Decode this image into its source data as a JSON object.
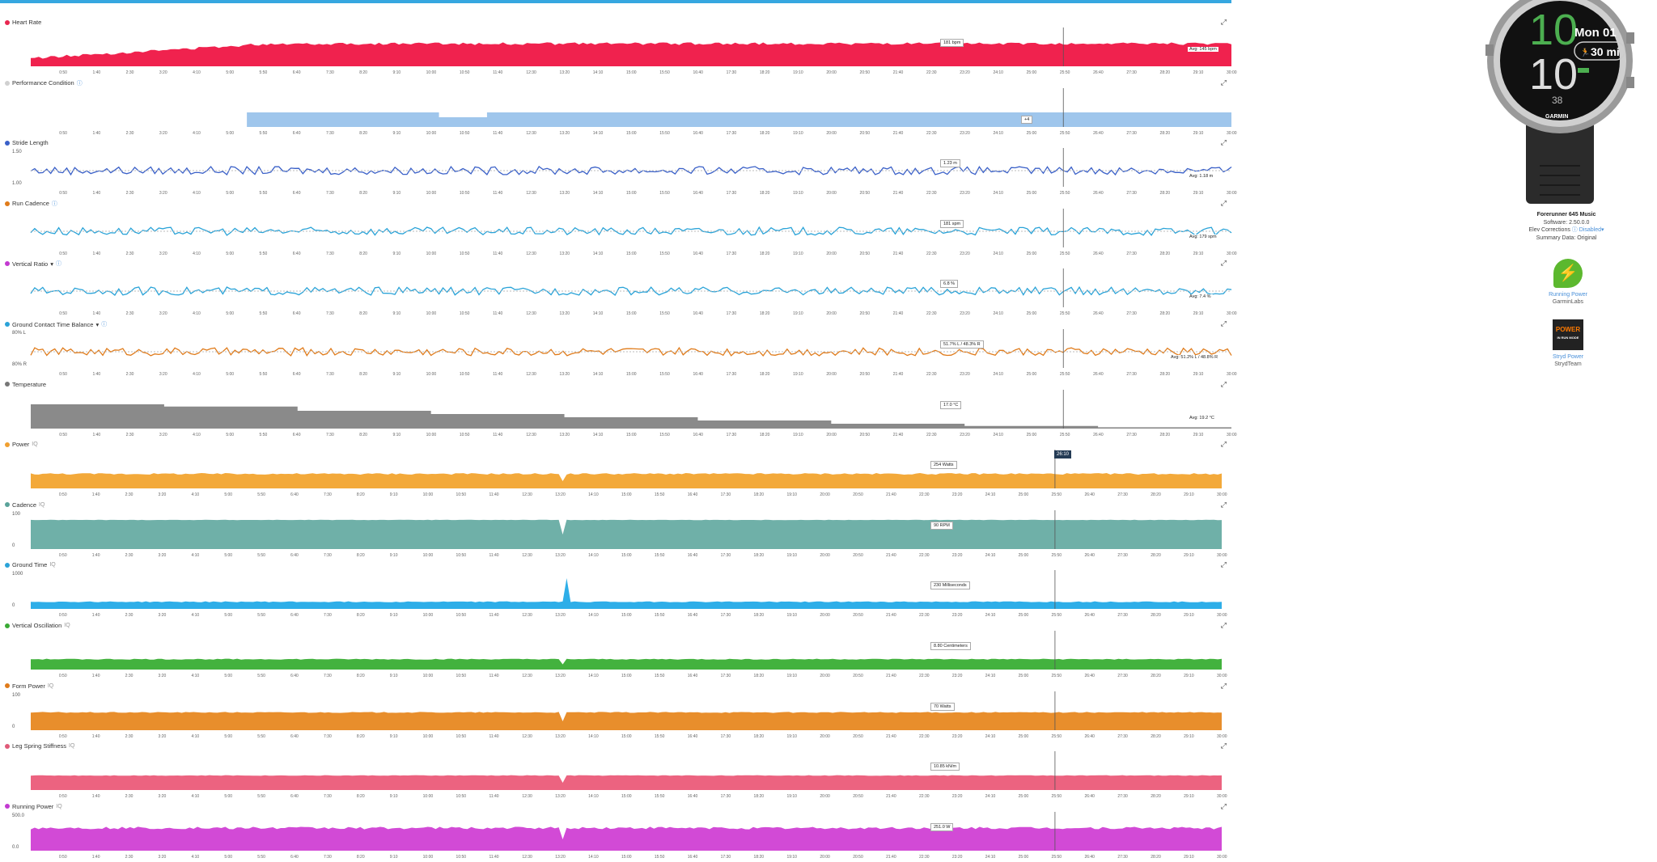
{
  "panels": [
    {
      "id": "heart-rate",
      "title": "Heart Rate",
      "color": "#e8264f",
      "fill": "#f0224e",
      "type": "area",
      "level": 0.55,
      "variance": 0.1,
      "help": false,
      "gear": false,
      "ymax": "",
      "ymin": "",
      "tip": "181 bpm",
      "avg": "Avg: 145 bpm"
    },
    {
      "id": "performance-condition",
      "title": "Performance Condition",
      "color": "#d0d0d0",
      "fill": "#9fc6ec",
      "type": "perf",
      "help": true,
      "gear": false,
      "ymax": "",
      "ymin": "",
      "tip": "+4",
      "avg": ""
    },
    {
      "id": "stride-length",
      "title": "Stride Length",
      "color": "#3a60c8",
      "fill": "#3a60c8",
      "type": "line",
      "help": false,
      "gear": false,
      "ymax": "1.50",
      "ymin": "1.00",
      "tip": "1.23 m",
      "avg": "Avg: 1.18 m"
    },
    {
      "id": "run-cadence",
      "title": "Run Cadence",
      "color": "#e07b1a",
      "fill": "#2aa3d8",
      "type": "line",
      "help": true,
      "gear": false,
      "ymax": "",
      "ymin": "",
      "tip": "181 spm",
      "avg": "Avg: 179 spm"
    },
    {
      "id": "vertical-ratio",
      "title": "Vertical Ratio",
      "color": "#c33ad1",
      "fill": "#2aa3d8",
      "type": "line",
      "help": true,
      "gear": false,
      "dropdown": "▾",
      "ymax": "",
      "ymin": "",
      "tip": "6.8 %",
      "avg": "Avg: 7.4 %"
    },
    {
      "id": "ground-contact-time-balance",
      "title": "Ground Contact Time Balance",
      "color": "#2aa3d8",
      "fill": "#e07b1a",
      "type": "line",
      "help": true,
      "gear": false,
      "dropdown": "▾",
      "ymax": "80% L",
      "ymin": "80% R",
      "tip": "51.7% L / 48.3% R",
      "avg": "Avg: 51.2% L / 48.8% R"
    },
    {
      "id": "temperature",
      "title": "Temperature",
      "color": "#777777",
      "fill": "#8a8a8a",
      "type": "steps",
      "help": false,
      "gear": false,
      "ymax": "",
      "ymin": "",
      "tip": "17.0 °C",
      "avg": "Avg: 19.2 °C"
    },
    {
      "id": "power",
      "title": "Power",
      "color": "#f0a030",
      "fill": "#f3a93a",
      "type": "area",
      "level": 0.45,
      "variance": 0.05,
      "help": false,
      "gear": true,
      "ymax": "",
      "ymin": "",
      "tip": "254 Watts",
      "avg": "",
      "cursor": "26:10"
    },
    {
      "id": "cadence",
      "title": "Cadence",
      "color": "#5aa39a",
      "fill": "#6fb0a8",
      "type": "area",
      "level": 0.9,
      "variance": 0.01,
      "help": false,
      "gear": true,
      "ymax": "100",
      "ymin": "0",
      "tip": "90 RPM",
      "avg": ""
    },
    {
      "id": "ground-time",
      "title": "Ground Time",
      "color": "#2aa3d8",
      "fill": "#2eaee8",
      "type": "area",
      "level": 0.22,
      "variance": 0.03,
      "help": false,
      "gear": true,
      "ymax": "1000",
      "ymin": "0",
      "tip": "230 Milliseconds",
      "avg": ""
    },
    {
      "id": "vertical-oscillation",
      "title": "Vertical Oscillation",
      "color": "#3aaa35",
      "fill": "#43b23e",
      "type": "area",
      "level": 0.32,
      "variance": 0.03,
      "help": false,
      "gear": true,
      "ymax": "",
      "ymin": "",
      "tip": "8.80 Centimeters",
      "avg": ""
    },
    {
      "id": "form-power",
      "title": "Form Power",
      "color": "#e07b1a",
      "fill": "#e88e2c",
      "type": "area",
      "level": 0.55,
      "variance": 0.03,
      "help": false,
      "gear": true,
      "ymax": "100",
      "ymin": "0",
      "tip": "70 Watts",
      "avg": ""
    },
    {
      "id": "leg-spring-stiffness",
      "title": "Leg Spring Stiffness",
      "color": "#e05a78",
      "fill": "#ec6380",
      "type": "area",
      "level": 0.45,
      "variance": 0.02,
      "help": false,
      "gear": true,
      "ymax": "",
      "ymin": "",
      "tip": "10.85 kN/m",
      "avg": ""
    },
    {
      "id": "running-power",
      "title": "Running Power",
      "color": "#c33ad1",
      "fill": "#d24ad6",
      "type": "area",
      "level": 0.7,
      "variance": 0.08,
      "help": false,
      "gear": true,
      "ymax": "500.0",
      "ymin": "0.0",
      "tip": "251.0 W",
      "avg": ""
    }
  ],
  "xticks": [
    "0:50",
    "1:40",
    "2:30",
    "3:20",
    "4:10",
    "5:00",
    "5:50",
    "6:40",
    "7:30",
    "8:20",
    "9:10",
    "10:00",
    "10:50",
    "11:40",
    "12:30",
    "13:20",
    "14:10",
    "15:00",
    "15:50",
    "16:40",
    "17:30",
    "18:20",
    "19:10",
    "20:00",
    "20:50",
    "21:40",
    "22:30",
    "23:20",
    "24:10",
    "25:00",
    "25:50",
    "26:40",
    "27:30",
    "28:20",
    "29:10",
    "30:00"
  ],
  "watch": {
    "hour": "10",
    "minute": "10",
    "seconds": "38",
    "date": "Mon 01",
    "distance": "30 mi",
    "brand": "GARMIN"
  },
  "device": {
    "name": "Forerunner 645 Music",
    "software": "Software: 2.50.0.0",
    "elev": "Elev Corrections",
    "elev_state": "Disabled",
    "summary": "Summary Data: Original"
  },
  "apps": [
    {
      "label": "Running Power",
      "dev": "GarminLabs",
      "icon": "running-figure-icon"
    },
    {
      "label": "Stryd Power",
      "dev": "StrydTeam",
      "icon": "stryd-power-icon",
      "badge1": "POWER",
      "badge2": "IN RUN MODE"
    }
  ]
}
